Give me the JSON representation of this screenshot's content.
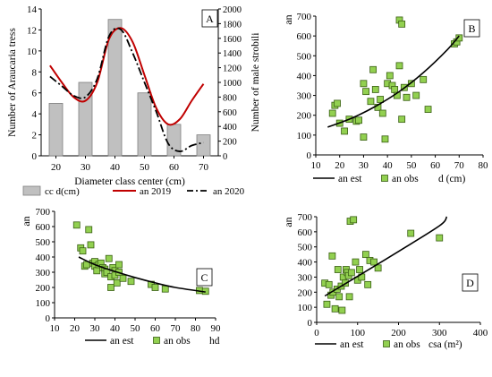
{
  "chart_data": [
    {
      "id": "A",
      "type": "bar",
      "panel_label": "A",
      "xlabel": "Diameter class center (cm)",
      "ylabel_left": "Number of Araucaria tress",
      "ylabel_right": "Number of male strobili",
      "categories": [
        "20",
        "30",
        "40",
        "50",
        "60",
        "70"
      ],
      "ylim_left": [
        0,
        14
      ],
      "yticks_left": [
        "0",
        "2",
        "4",
        "6",
        "8",
        "10",
        "12",
        "14"
      ],
      "ylim_right": [
        0,
        2000
      ],
      "yticks_right": [
        "0",
        "200",
        "400",
        "600",
        "800",
        "1000",
        "1200",
        "1400",
        "1600",
        "1800",
        "2000"
      ],
      "bars": {
        "name": "cc d(cm)",
        "color": "#c0c0c0",
        "values": [
          5,
          7,
          13,
          6,
          3,
          2
        ]
      },
      "lines": [
        {
          "name": "an 2019",
          "color": "#c00000",
          "style": "solid",
          "x": [
            18,
            22,
            26,
            30,
            34,
            38,
            42,
            46,
            50,
            54,
            58,
            62,
            66,
            70
          ],
          "y": [
            1230,
            1000,
            800,
            750,
            1000,
            1590,
            1740,
            1550,
            1100,
            650,
            430,
            500,
            750,
            980
          ]
        },
        {
          "name": "an 2020",
          "color": "#000000",
          "style": "dashdot",
          "x": [
            18,
            22,
            26,
            30,
            34,
            38,
            42,
            46,
            50,
            54,
            58,
            62,
            66,
            70
          ],
          "y": [
            1080,
            950,
            820,
            800,
            1050,
            1630,
            1720,
            1400,
            1000,
            600,
            170,
            60,
            140,
            180
          ]
        }
      ],
      "legend": [
        "cc d(cm)",
        "an 2019",
        "an 2020"
      ],
      "legend_position": "bottom"
    },
    {
      "id": "B",
      "type": "scatter",
      "panel_label": "B",
      "ylabel": "an",
      "xlabel": "d (cm)",
      "xlim": [
        10,
        80
      ],
      "xticks": [
        "10",
        "20",
        "30",
        "40",
        "50",
        "60",
        "70",
        "80"
      ],
      "ylim": [
        0,
        700
      ],
      "yticks": [
        "0",
        "100",
        "200",
        "300",
        "400",
        "500",
        "600",
        "700"
      ],
      "points": {
        "name": "an obs",
        "x": [
          17,
          18,
          19,
          20,
          22,
          24,
          27,
          28,
          30,
          30,
          31,
          33,
          34,
          35,
          36,
          37,
          38,
          39,
          40,
          41,
          42,
          43,
          44,
          45,
          45,
          46,
          46,
          47,
          48,
          50,
          52,
          55,
          57,
          68,
          69,
          70
        ],
        "y": [
          210,
          250,
          260,
          160,
          120,
          180,
          170,
          175,
          360,
          90,
          320,
          270,
          430,
          330,
          240,
          280,
          210,
          80,
          360,
          400,
          350,
          330,
          300,
          450,
          680,
          660,
          180,
          340,
          290,
          360,
          300,
          380,
          230,
          560,
          570,
          590
        ]
      },
      "fit": {
        "name": "an est",
        "x": [
          15,
          25,
          35,
          45,
          55,
          65,
          70
        ],
        "y": [
          140,
          185,
          245,
          320,
          415,
          530,
          600
        ]
      },
      "legend": [
        "an est",
        "an obs"
      ],
      "legend_position": "bottom"
    },
    {
      "id": "C",
      "type": "scatter",
      "panel_label": "C",
      "ylabel": "an",
      "xlabel": "hd",
      "xlim": [
        10,
        90
      ],
      "xticks": [
        "10",
        "20",
        "30",
        "40",
        "50",
        "60",
        "70",
        "80",
        "90"
      ],
      "ylim": [
        0,
        700
      ],
      "yticks": [
        "0",
        "100",
        "200",
        "300",
        "400",
        "500",
        "600",
        "700"
      ],
      "points": {
        "name": "an obs",
        "x": [
          21,
          23,
          24,
          25,
          26,
          27,
          28,
          29,
          30,
          30,
          31,
          32,
          33,
          34,
          35,
          35,
          36,
          37,
          38,
          38,
          39,
          40,
          40,
          41,
          42,
          42,
          44,
          48,
          58,
          60,
          65,
          82,
          85
        ],
        "y": [
          610,
          460,
          440,
          340,
          350,
          580,
          480,
          360,
          370,
          340,
          310,
          350,
          360,
          330,
          320,
          290,
          300,
          390,
          270,
          200,
          330,
          310,
          280,
          230,
          350,
          300,
          260,
          240,
          220,
          200,
          190,
          180,
          175
        ]
      },
      "fit": {
        "name": "an est",
        "x": [
          22,
          30,
          40,
          50,
          60,
          70,
          85
        ],
        "y": [
          400,
          350,
          305,
          265,
          230,
          200,
          170
        ]
      },
      "legend": [
        "an est",
        "an obs"
      ],
      "legend_position": "bottom"
    },
    {
      "id": "D",
      "type": "scatter",
      "panel_label": "D",
      "ylabel": "an",
      "xlabel": "csa (m²)",
      "xlim": [
        0,
        400
      ],
      "xticks": [
        "0",
        "100",
        "200",
        "300",
        "400"
      ],
      "ylim": [
        0,
        700
      ],
      "yticks": [
        "0",
        "100",
        "200",
        "300",
        "400",
        "500",
        "600",
        "700"
      ],
      "points": {
        "name": "an obs",
        "x": [
          20,
          25,
          30,
          35,
          38,
          40,
          45,
          50,
          52,
          55,
          60,
          62,
          65,
          70,
          72,
          75,
          78,
          80,
          82,
          85,
          90,
          95,
          100,
          105,
          110,
          120,
          125,
          130,
          140,
          150,
          230,
          300
        ],
        "y": [
          260,
          120,
          250,
          180,
          440,
          200,
          90,
          220,
          350,
          170,
          240,
          80,
          300,
          260,
          350,
          330,
          310,
          170,
          670,
          330,
          680,
          400,
          280,
          350,
          300,
          450,
          250,
          410,
          400,
          360,
          590,
          560
        ]
      },
      "fit": {
        "name": "an est",
        "x": [
          20,
          100,
          200,
          300,
          318
        ],
        "y": [
          175,
          305,
          470,
          640,
          700
        ]
      },
      "legend": [
        "an est",
        "an obs"
      ],
      "legend_position": "bottom"
    }
  ]
}
